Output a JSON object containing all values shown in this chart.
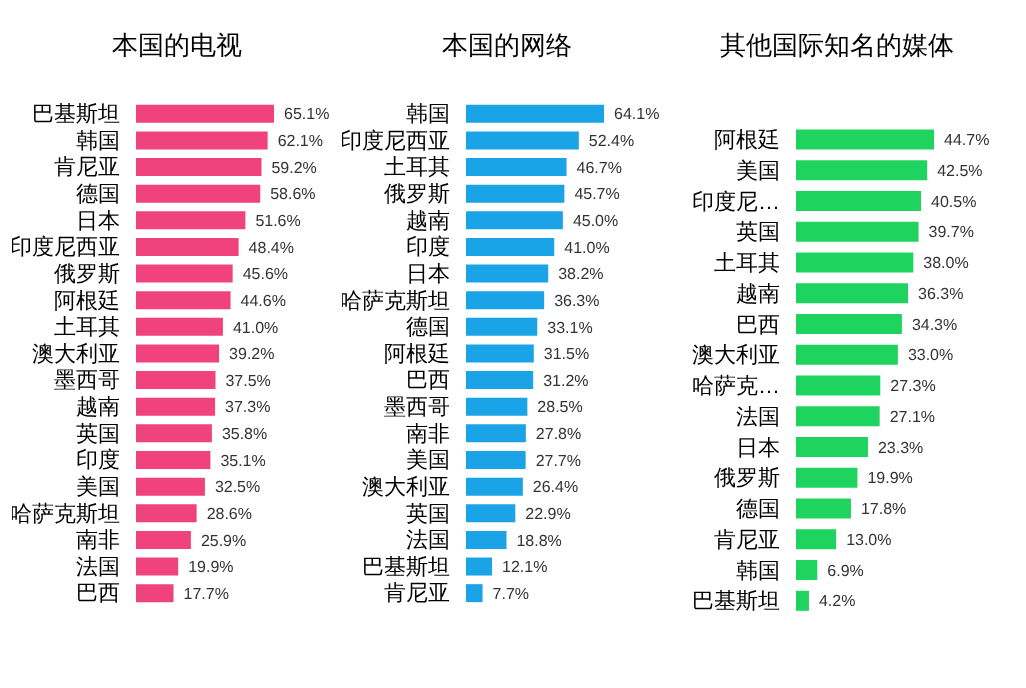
{
  "chart_data": [
    {
      "type": "bar",
      "orientation": "horizontal",
      "title": "本国的电视",
      "categories": [
        "巴基斯坦",
        "韩国",
        "肯尼亚",
        "德国",
        "日本",
        "印度尼西亚",
        "俄罗斯",
        "阿根廷",
        "土耳其",
        "澳大利亚",
        "墨西哥",
        "越南",
        "英国",
        "印度",
        "美国",
        "哈萨克斯坦",
        "南非",
        "法国",
        "巴西"
      ],
      "color": "#f0427c",
      "values": [
        65.1,
        62.1,
        59.2,
        58.6,
        51.6,
        48.4,
        45.6,
        44.6,
        41.0,
        39.2,
        37.5,
        37.3,
        35.8,
        35.1,
        32.5,
        28.6,
        25.9,
        19.9,
        17.7
      ],
      "value_labels": [
        "65.1%",
        "62.1%",
        "59.2%",
        "58.6%",
        "51.6%",
        "48.4%",
        "45.6%",
        "44.6%",
        "41.0%",
        "39.2%",
        "37.5%",
        "37.3%",
        "35.8%",
        "35.1%",
        "32.5%",
        "28.6%",
        "25.9%",
        "19.9%",
        "17.7%"
      ]
    },
    {
      "type": "bar",
      "orientation": "horizontal",
      "title": "本国的网络",
      "categories": [
        "韩国",
        "印度尼西亚",
        "土耳其",
        "俄罗斯",
        "越南",
        "印度",
        "日本",
        "哈萨克斯坦",
        "德国",
        "阿根廷",
        "巴西",
        "墨西哥",
        "南非",
        "美国",
        "澳大利亚",
        "英国",
        "法国",
        "巴基斯坦",
        "肯尼亚"
      ],
      "color": "#1aa3e6",
      "values": [
        64.1,
        52.4,
        46.7,
        45.7,
        45.0,
        41.0,
        38.2,
        36.3,
        33.1,
        31.5,
        31.2,
        28.5,
        27.8,
        27.7,
        26.4,
        22.9,
        18.8,
        12.1,
        7.7
      ],
      "value_labels": [
        "64.1%",
        "52.4%",
        "46.7%",
        "45.7%",
        "45.0%",
        "41.0%",
        "38.2%",
        "36.3%",
        "33.1%",
        "31.5%",
        "31.2%",
        "28.5%",
        "27.8%",
        "27.7%",
        "26.4%",
        "22.9%",
        "18.8%",
        "12.1%",
        "7.7%"
      ]
    },
    {
      "type": "bar",
      "orientation": "horizontal",
      "title": "其他国际知名的媒体",
      "categories": [
        "阿根廷",
        "美国",
        "印度尼…",
        "英国",
        "土耳其",
        "越南",
        "巴西",
        "澳大利亚",
        "哈萨克…",
        "法国",
        "日本",
        "俄罗斯",
        "德国",
        "肯尼亚",
        "韩国",
        "巴基斯坦"
      ],
      "color": "#1fd35f",
      "values": [
        44.7,
        42.5,
        40.5,
        39.7,
        38.0,
        36.3,
        34.3,
        33.0,
        27.3,
        27.1,
        23.3,
        19.9,
        17.8,
        13.0,
        6.9,
        4.2
      ],
      "value_labels": [
        "44.7%",
        "42.5%",
        "40.5%",
        "39.7%",
        "38.0%",
        "36.3%",
        "34.3%",
        "33.0%",
        "27.3%",
        "27.1%",
        "23.3%",
        "19.9%",
        "17.8%",
        "13.0%",
        "6.9%",
        "4.2%"
      ]
    }
  ]
}
